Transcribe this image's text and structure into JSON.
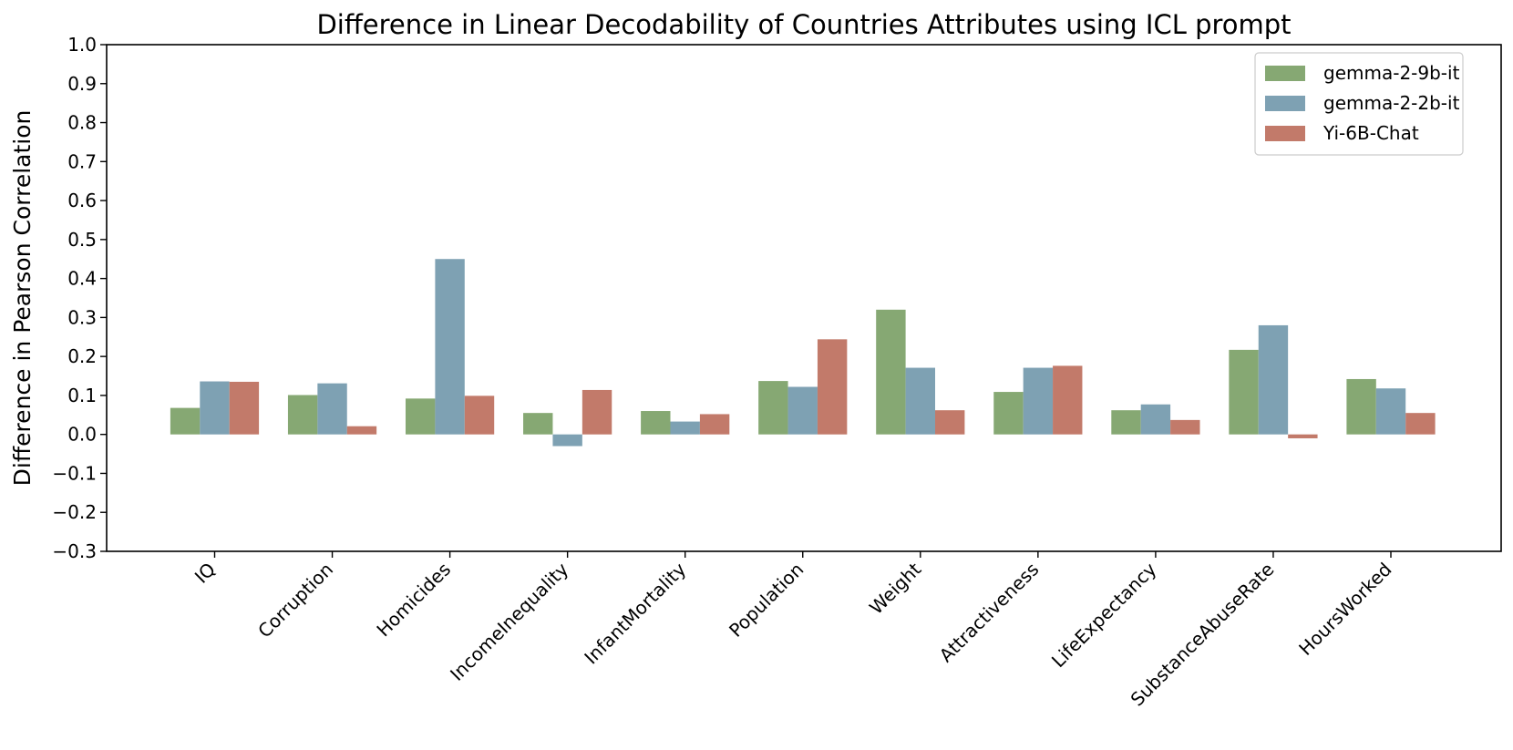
{
  "chart_data": {
    "type": "bar",
    "title": "Difference in Linear Decodability of Countries Attributes using ICL prompt",
    "xlabel": "",
    "ylabel": "Difference in Pearson Correlation",
    "ylim": [
      -0.3,
      1.0
    ],
    "yticks": [
      "1.0",
      "0.9",
      "0.8",
      "0.7",
      "0.6",
      "0.5",
      "0.4",
      "0.3",
      "0.2",
      "0.1",
      "0.0",
      "−0.1",
      "−0.2",
      "−0.3"
    ],
    "ytick_values": [
      1.0,
      0.9,
      0.8,
      0.7,
      0.6,
      0.5,
      0.4,
      0.3,
      0.2,
      0.1,
      0.0,
      -0.1,
      -0.2,
      -0.3
    ],
    "categories": [
      "IQ",
      "Corruption",
      "Homicides",
      "IncomeInequality",
      "InfantMortality",
      "Population",
      "Weight",
      "Attractiveness",
      "LifeExpectancy",
      "SubstanceAbuseRate",
      "HoursWorked"
    ],
    "series": [
      {
        "name": "gemma-2-9b-it",
        "color": "#86a873",
        "values": [
          0.068,
          0.101,
          0.092,
          0.055,
          0.06,
          0.137,
          0.32,
          0.109,
          0.062,
          0.217,
          0.142
        ]
      },
      {
        "name": "gemma-2-2b-it",
        "color": "#7ea1b3",
        "values": [
          0.136,
          0.131,
          0.45,
          -0.03,
          0.033,
          0.122,
          0.171,
          0.171,
          0.077,
          0.28,
          0.118
        ]
      },
      {
        "name": "Yi-6B-Chat",
        "color": "#c27a6a",
        "values": [
          0.135,
          0.021,
          0.099,
          0.114,
          0.052,
          0.244,
          0.062,
          0.176,
          0.037,
          -0.01,
          0.055
        ]
      }
    ],
    "legend_position": "top-right",
    "grid": false
  }
}
